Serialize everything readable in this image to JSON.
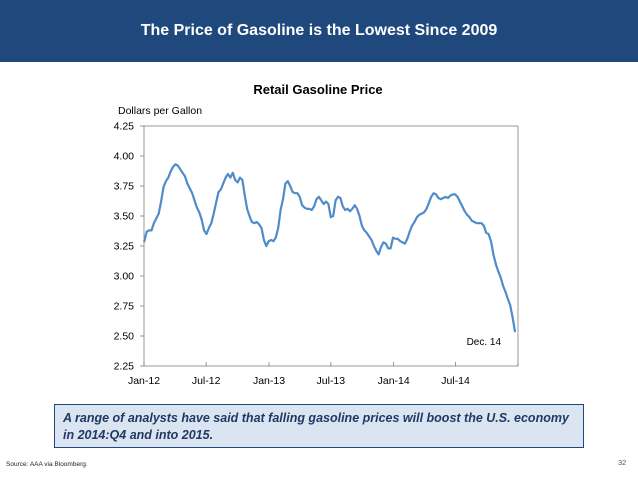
{
  "banner": {
    "title": "The Price of Gasoline is the Lowest Since 2009"
  },
  "chart_data": {
    "type": "line",
    "title": "Retail Gasoline Price",
    "ylabel": "Dollars per Gallon",
    "xlabel": "",
    "ylim": [
      2.25,
      4.25
    ],
    "yticks": [
      "2.25",
      "2.50",
      "2.75",
      "3.00",
      "3.25",
      "3.50",
      "3.75",
      "4.00",
      "4.25"
    ],
    "xlim": [
      "2012-01-01",
      "2014-12-31"
    ],
    "xticks": [
      {
        "label": "Jan-12",
        "date": "2012-01-01"
      },
      {
        "label": "Jul-12",
        "date": "2012-07-01"
      },
      {
        "label": "Jan-13",
        "date": "2013-01-01"
      },
      {
        "label": "Jul-13",
        "date": "2013-07-01"
      },
      {
        "label": "Jan-14",
        "date": "2014-01-01"
      },
      {
        "label": "Jul-14",
        "date": "2014-07-01"
      }
    ],
    "line_color": "#4f8cc9",
    "grid": false,
    "annotations": [
      {
        "text": "Dec. 14",
        "date": "2014-12-10",
        "value": 2.5
      }
    ],
    "series": [
      {
        "values": [
          {
            "x": "2012-01-02",
            "y": 3.29
          },
          {
            "x": "2012-01-09",
            "y": 3.37
          },
          {
            "x": "2012-01-16",
            "y": 3.38
          },
          {
            "x": "2012-01-23",
            "y": 3.38
          },
          {
            "x": "2012-01-30",
            "y": 3.44
          },
          {
            "x": "2012-02-06",
            "y": 3.48
          },
          {
            "x": "2012-02-13",
            "y": 3.52
          },
          {
            "x": "2012-02-20",
            "y": 3.62
          },
          {
            "x": "2012-02-27",
            "y": 3.74
          },
          {
            "x": "2012-03-05",
            "y": 3.79
          },
          {
            "x": "2012-03-12",
            "y": 3.82
          },
          {
            "x": "2012-03-19",
            "y": 3.87
          },
          {
            "x": "2012-03-26",
            "y": 3.91
          },
          {
            "x": "2012-04-02",
            "y": 3.93
          },
          {
            "x": "2012-04-09",
            "y": 3.92
          },
          {
            "x": "2012-04-16",
            "y": 3.89
          },
          {
            "x": "2012-04-23",
            "y": 3.86
          },
          {
            "x": "2012-04-30",
            "y": 3.83
          },
          {
            "x": "2012-05-07",
            "y": 3.77
          },
          {
            "x": "2012-05-14",
            "y": 3.73
          },
          {
            "x": "2012-05-21",
            "y": 3.69
          },
          {
            "x": "2012-05-28",
            "y": 3.63
          },
          {
            "x": "2012-06-04",
            "y": 3.57
          },
          {
            "x": "2012-06-11",
            "y": 3.53
          },
          {
            "x": "2012-06-18",
            "y": 3.47
          },
          {
            "x": "2012-06-25",
            "y": 3.38
          },
          {
            "x": "2012-07-02",
            "y": 3.35
          },
          {
            "x": "2012-07-09",
            "y": 3.4
          },
          {
            "x": "2012-07-16",
            "y": 3.44
          },
          {
            "x": "2012-07-23",
            "y": 3.52
          },
          {
            "x": "2012-07-30",
            "y": 3.61
          },
          {
            "x": "2012-08-06",
            "y": 3.7
          },
          {
            "x": "2012-08-13",
            "y": 3.72
          },
          {
            "x": "2012-08-20",
            "y": 3.77
          },
          {
            "x": "2012-08-27",
            "y": 3.82
          },
          {
            "x": "2012-09-03",
            "y": 3.85
          },
          {
            "x": "2012-09-10",
            "y": 3.82
          },
          {
            "x": "2012-09-17",
            "y": 3.86
          },
          {
            "x": "2012-09-24",
            "y": 3.8
          },
          {
            "x": "2012-10-01",
            "y": 3.78
          },
          {
            "x": "2012-10-08",
            "y": 3.82
          },
          {
            "x": "2012-10-15",
            "y": 3.8
          },
          {
            "x": "2012-10-22",
            "y": 3.67
          },
          {
            "x": "2012-10-29",
            "y": 3.56
          },
          {
            "x": "2012-11-05",
            "y": 3.5
          },
          {
            "x": "2012-11-12",
            "y": 3.45
          },
          {
            "x": "2012-11-19",
            "y": 3.44
          },
          {
            "x": "2012-11-26",
            "y": 3.45
          },
          {
            "x": "2012-12-03",
            "y": 3.43
          },
          {
            "x": "2012-12-10",
            "y": 3.4
          },
          {
            "x": "2012-12-17",
            "y": 3.3
          },
          {
            "x": "2012-12-24",
            "y": 3.25
          },
          {
            "x": "2012-12-31",
            "y": 3.29
          },
          {
            "x": "2013-01-07",
            "y": 3.3
          },
          {
            "x": "2013-01-14",
            "y": 3.29
          },
          {
            "x": "2013-01-21",
            "y": 3.32
          },
          {
            "x": "2013-01-28",
            "y": 3.4
          },
          {
            "x": "2013-02-04",
            "y": 3.55
          },
          {
            "x": "2013-02-11",
            "y": 3.64
          },
          {
            "x": "2013-02-18",
            "y": 3.77
          },
          {
            "x": "2013-02-25",
            "y": 3.79
          },
          {
            "x": "2013-03-04",
            "y": 3.75
          },
          {
            "x": "2013-03-11",
            "y": 3.7
          },
          {
            "x": "2013-03-18",
            "y": 3.69
          },
          {
            "x": "2013-03-25",
            "y": 3.69
          },
          {
            "x": "2013-04-01",
            "y": 3.66
          },
          {
            "x": "2013-04-08",
            "y": 3.59
          },
          {
            "x": "2013-04-15",
            "y": 3.57
          },
          {
            "x": "2013-04-22",
            "y": 3.56
          },
          {
            "x": "2013-04-29",
            "y": 3.56
          },
          {
            "x": "2013-05-06",
            "y": 3.55
          },
          {
            "x": "2013-05-13",
            "y": 3.58
          },
          {
            "x": "2013-05-20",
            "y": 3.64
          },
          {
            "x": "2013-05-27",
            "y": 3.66
          },
          {
            "x": "2013-06-03",
            "y": 3.63
          },
          {
            "x": "2013-06-10",
            "y": 3.6
          },
          {
            "x": "2013-06-17",
            "y": 3.62
          },
          {
            "x": "2013-06-24",
            "y": 3.6
          },
          {
            "x": "2013-07-01",
            "y": 3.49
          },
          {
            "x": "2013-07-08",
            "y": 3.5
          },
          {
            "x": "2013-07-15",
            "y": 3.63
          },
          {
            "x": "2013-07-22",
            "y": 3.66
          },
          {
            "x": "2013-07-29",
            "y": 3.65
          },
          {
            "x": "2013-08-05",
            "y": 3.58
          },
          {
            "x": "2013-08-12",
            "y": 3.55
          },
          {
            "x": "2013-08-19",
            "y": 3.56
          },
          {
            "x": "2013-08-26",
            "y": 3.54
          },
          {
            "x": "2013-09-02",
            "y": 3.56
          },
          {
            "x": "2013-09-09",
            "y": 3.59
          },
          {
            "x": "2013-09-16",
            "y": 3.56
          },
          {
            "x": "2013-09-23",
            "y": 3.5
          },
          {
            "x": "2013-09-30",
            "y": 3.42
          },
          {
            "x": "2013-10-07",
            "y": 3.38
          },
          {
            "x": "2013-10-14",
            "y": 3.36
          },
          {
            "x": "2013-10-21",
            "y": 3.33
          },
          {
            "x": "2013-10-28",
            "y": 3.3
          },
          {
            "x": "2013-11-04",
            "y": 3.25
          },
          {
            "x": "2013-11-11",
            "y": 3.21
          },
          {
            "x": "2013-11-18",
            "y": 3.18
          },
          {
            "x": "2013-11-25",
            "y": 3.24
          },
          {
            "x": "2013-12-02",
            "y": 3.28
          },
          {
            "x": "2013-12-09",
            "y": 3.27
          },
          {
            "x": "2013-12-16",
            "y": 3.23
          },
          {
            "x": "2013-12-23",
            "y": 3.23
          },
          {
            "x": "2013-12-30",
            "y": 3.32
          },
          {
            "x": "2014-01-06",
            "y": 3.31
          },
          {
            "x": "2014-01-13",
            "y": 3.31
          },
          {
            "x": "2014-01-20",
            "y": 3.29
          },
          {
            "x": "2014-01-27",
            "y": 3.28
          },
          {
            "x": "2014-02-03",
            "y": 3.27
          },
          {
            "x": "2014-02-10",
            "y": 3.31
          },
          {
            "x": "2014-02-17",
            "y": 3.37
          },
          {
            "x": "2014-02-24",
            "y": 3.42
          },
          {
            "x": "2014-03-03",
            "y": 3.45
          },
          {
            "x": "2014-03-10",
            "y": 3.49
          },
          {
            "x": "2014-03-17",
            "y": 3.51
          },
          {
            "x": "2014-03-24",
            "y": 3.52
          },
          {
            "x": "2014-03-31",
            "y": 3.53
          },
          {
            "x": "2014-04-07",
            "y": 3.56
          },
          {
            "x": "2014-04-14",
            "y": 3.61
          },
          {
            "x": "2014-04-21",
            "y": 3.66
          },
          {
            "x": "2014-04-28",
            "y": 3.69
          },
          {
            "x": "2014-05-05",
            "y": 3.68
          },
          {
            "x": "2014-05-12",
            "y": 3.65
          },
          {
            "x": "2014-05-19",
            "y": 3.64
          },
          {
            "x": "2014-05-26",
            "y": 3.65
          },
          {
            "x": "2014-06-02",
            "y": 3.66
          },
          {
            "x": "2014-06-09",
            "y": 3.65
          },
          {
            "x": "2014-06-16",
            "y": 3.67
          },
          {
            "x": "2014-06-23",
            "y": 3.68
          },
          {
            "x": "2014-06-30",
            "y": 3.68
          },
          {
            "x": "2014-07-07",
            "y": 3.66
          },
          {
            "x": "2014-07-14",
            "y": 3.62
          },
          {
            "x": "2014-07-21",
            "y": 3.58
          },
          {
            "x": "2014-07-28",
            "y": 3.54
          },
          {
            "x": "2014-08-04",
            "y": 3.51
          },
          {
            "x": "2014-08-11",
            "y": 3.49
          },
          {
            "x": "2014-08-18",
            "y": 3.46
          },
          {
            "x": "2014-08-25",
            "y": 3.45
          },
          {
            "x": "2014-09-01",
            "y": 3.44
          },
          {
            "x": "2014-09-08",
            "y": 3.44
          },
          {
            "x": "2014-09-15",
            "y": 3.44
          },
          {
            "x": "2014-09-22",
            "y": 3.42
          },
          {
            "x": "2014-09-29",
            "y": 3.36
          },
          {
            "x": "2014-10-06",
            "y": 3.35
          },
          {
            "x": "2014-10-13",
            "y": 3.29
          },
          {
            "x": "2014-10-20",
            "y": 3.18
          },
          {
            "x": "2014-10-27",
            "y": 3.1
          },
          {
            "x": "2014-11-03",
            "y": 3.04
          },
          {
            "x": "2014-11-10",
            "y": 2.99
          },
          {
            "x": "2014-11-17",
            "y": 2.92
          },
          {
            "x": "2014-11-24",
            "y": 2.87
          },
          {
            "x": "2014-12-01",
            "y": 2.81
          },
          {
            "x": "2014-12-08",
            "y": 2.76
          },
          {
            "x": "2014-12-15",
            "y": 2.66
          },
          {
            "x": "2014-12-22",
            "y": 2.54
          }
        ]
      }
    ]
  },
  "callout": {
    "text": "A range of analysts have said that falling gasoline prices will boost the U.S. economy in 2014:Q4 and into 2015."
  },
  "footer": {
    "source": "Source: AAA via Bloomberg.",
    "page_number": "32"
  }
}
